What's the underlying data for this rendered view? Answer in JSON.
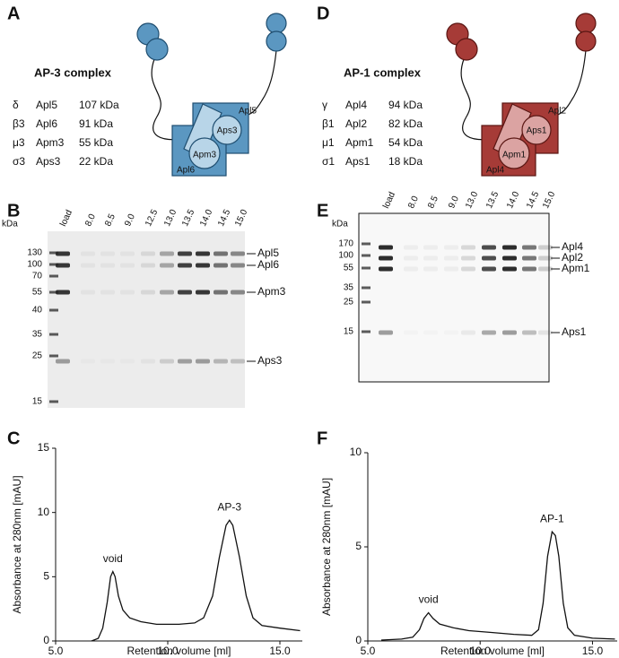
{
  "panels": [
    {
      "letter": "A",
      "title": "AP-3 complex",
      "rows": [
        [
          "δ",
          "Apl5",
          "107 kDa"
        ],
        [
          "β3",
          "Apl6",
          "91 kDa"
        ],
        [
          "μ3",
          "Apm3",
          "55 kDa"
        ],
        [
          "σ3",
          "Aps3",
          "22 kDa"
        ]
      ],
      "diagram": [
        "Apl5",
        "Aps3",
        "Apm3",
        "Apl6"
      ]
    },
    {
      "letter": "D",
      "title": "AP-1 complex",
      "rows": [
        [
          "γ",
          "Apl4",
          "94 kDa"
        ],
        [
          "β1",
          "Apl2",
          "82 kDa"
        ],
        [
          "μ1",
          "Apm1",
          "54 kDa"
        ],
        [
          "σ1",
          "Aps1",
          "18 kDa"
        ]
      ],
      "diagram": [
        "Apl2",
        "Aps1",
        "Apm1",
        "Apl4"
      ]
    }
  ],
  "gels": [
    {
      "letter": "B",
      "unit": "kDa",
      "markers": [
        130,
        100,
        70,
        55,
        40,
        35,
        25,
        15
      ],
      "lanes": [
        "load",
        "8.0",
        "8.5",
        "9.0",
        "12.5",
        "13.0",
        "13.5",
        "14.0",
        "14.5",
        "15.0"
      ],
      "bands": [
        "Apl5",
        "Apl6",
        "Apm3",
        "Aps3"
      ]
    },
    {
      "letter": "E",
      "unit": "kDa",
      "markers": [
        170,
        100,
        55,
        35,
        25,
        15
      ],
      "lanes": [
        "load",
        "8.0",
        "8.5",
        "9.0",
        "13.0",
        "13.5",
        "14.0",
        "14.5",
        "15.0"
      ],
      "bands": [
        "Apl4",
        "Apl2",
        "Apm1",
        "Aps1"
      ]
    }
  ],
  "chart_data": [
    {
      "type": "line",
      "letter": "C",
      "xlabel": "Retention volume [ml]",
      "ylabel": "Absorbance at 280nm [mAU]",
      "xlim": [
        5,
        16
      ],
      "xticks": [
        {
          "value": 5,
          "label": "5.0"
        },
        {
          "value": 10,
          "label": "10.0"
        },
        {
          "value": 15,
          "label": "15.0"
        }
      ],
      "ylim": [
        0,
        15
      ],
      "yticks": [
        0,
        5,
        10,
        15
      ],
      "color": "#111111",
      "x": [
        6.6,
        6.9,
        7.1,
        7.3,
        7.45,
        7.55,
        7.65,
        7.8,
        8.0,
        8.3,
        8.8,
        9.5,
        10.5,
        11.2,
        11.6,
        12.0,
        12.3,
        12.6,
        12.75,
        12.9,
        13.2,
        13.5,
        13.8,
        14.2,
        15,
        15.9
      ],
      "values": [
        0,
        0.2,
        1,
        3,
        5,
        5.4,
        5,
        3.5,
        2.4,
        1.8,
        1.5,
        1.3,
        1.3,
        1.4,
        1.8,
        3.5,
        6.5,
        9,
        9.4,
        9,
        6.5,
        3.5,
        1.8,
        1.2,
        1,
        0.8
      ],
      "annotations": [
        "void",
        "AP-3"
      ]
    },
    {
      "type": "line",
      "letter": "F",
      "xlabel": "Retention volume [ml]",
      "ylabel": "Absorbance at 280nm [mAU]",
      "xlim": [
        5,
        16.1
      ],
      "xticks": [
        {
          "value": 5,
          "label": "5.0"
        },
        {
          "value": 10,
          "label": "10.0"
        },
        {
          "value": 15,
          "label": "15.0"
        }
      ],
      "ylim": [
        0,
        10
      ],
      "yticks": [
        0,
        5,
        10
      ],
      "color": "#111111",
      "x": [
        5.6,
        6.5,
        7.0,
        7.3,
        7.5,
        7.7,
        7.9,
        8.2,
        8.8,
        9.5,
        10.5,
        11.5,
        12.3,
        12.6,
        12.8,
        13.0,
        13.2,
        13.35,
        13.5,
        13.7,
        13.9,
        14.2,
        15,
        16
      ],
      "values": [
        0.05,
        0.1,
        0.2,
        0.6,
        1.2,
        1.5,
        1.2,
        0.9,
        0.7,
        0.55,
        0.45,
        0.35,
        0.3,
        0.6,
        2,
        4.5,
        5.8,
        5.6,
        4.5,
        2,
        0.7,
        0.3,
        0.15,
        0.1
      ],
      "annotations": [
        "void",
        "AP-1"
      ]
    }
  ]
}
